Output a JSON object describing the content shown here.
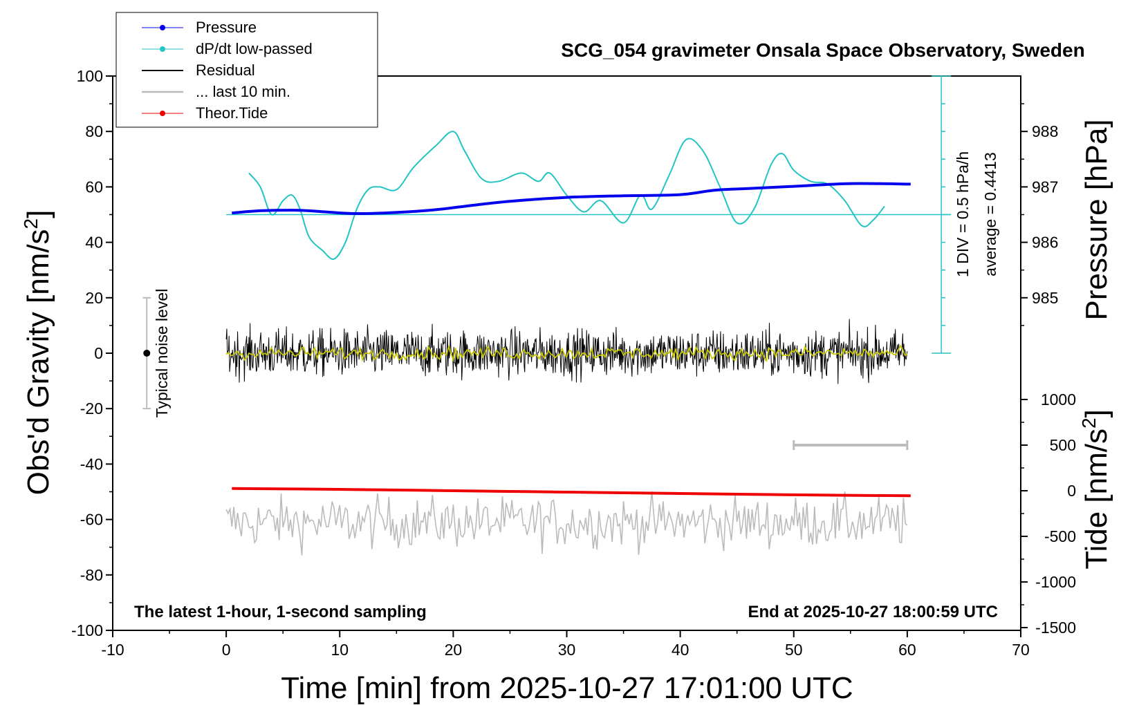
{
  "chart_data": {
    "type": "line",
    "title": "SCG_054 gravimeter Onsala Space Observatory, Sweden",
    "xlabel": "Time [min] from 2025-10-27 17:01:00 UTC",
    "ylabel": "Obs'd Gravity [nm/s",
    "ylabel_sup": "2",
    "ylabel_tail": "]",
    "y2label": "Pressure [hPa]",
    "y3label": "Tide [nm/s",
    "y3label_sup": "2",
    "y3label_tail": "]",
    "xlim": [
      -10,
      70
    ],
    "ylim": [
      -100,
      100
    ],
    "xticks": [
      "-10",
      "0",
      "10",
      "20",
      "30",
      "40",
      "50",
      "60",
      "70"
    ],
    "yticks": [
      "-100",
      "-80",
      "-60",
      "-40",
      "-20",
      "0",
      "20",
      "40",
      "60",
      "80",
      "100"
    ],
    "pressure_ticks": [
      "985",
      "986",
      "987",
      "988"
    ],
    "tide_ticks": [
      "-1500",
      "-1000",
      "-500",
      "0",
      "500",
      "1000"
    ],
    "grid": false,
    "legend_position": "top-left",
    "bottom_left_note": "The latest 1-hour, 1-second sampling",
    "bottom_right_note": "End at 2025-10-27 18:00:59 UTC",
    "noise_label": "Typical noise level",
    "noise_level": {
      "x": -7,
      "center": 0,
      "range": [
        -20,
        20
      ]
    },
    "dpdt_scale_label": "1 DIV = 0.5 hPa/h",
    "dpdt_average_label": "average = 0.4413",
    "dpdt_baseline_gravity": 50,
    "last10_bar": {
      "x": [
        50,
        60
      ],
      "tide": 500
    },
    "colors": {
      "pressure": "#0000ee",
      "dpdt": "#22c4c4",
      "residual": "#000000",
      "smoothed_residual": "#c8c800",
      "last10": "#bbbbbb",
      "tide": "#ee0000"
    },
    "series": [
      {
        "name": "Pressure",
        "axis": "pressure_hPa",
        "x": [
          0.5,
          3,
          6,
          8,
          11,
          14,
          18,
          21,
          25,
          30,
          35,
          40,
          43,
          46,
          50,
          55,
          60.3
        ],
        "y": [
          986.53,
          986.57,
          986.58,
          986.56,
          986.52,
          986.53,
          986.58,
          986.65,
          986.74,
          986.81,
          986.84,
          986.86,
          986.94,
          986.97,
          987.01,
          987.06,
          987.05
        ]
      },
      {
        "name": "dP/dt low-passed",
        "axis": "gravity_nm_s2",
        "x": [
          2,
          3,
          4,
          5,
          5.8,
          6.5,
          7.3,
          8.5,
          9.5,
          10.5,
          11.5,
          12.5,
          13.5,
          15,
          16.5,
          18.5,
          20,
          21,
          22.5,
          24,
          26,
          27.5,
          28.5,
          30,
          31.5,
          33,
          35,
          36.5,
          37.5,
          39,
          40.5,
          42,
          43.5,
          45,
          46.5,
          48,
          49,
          50,
          51.5,
          53,
          54.5,
          56,
          57,
          58
        ],
        "y": [
          65,
          60,
          50,
          55,
          57,
          52,
          42,
          37,
          34,
          40,
          52,
          59,
          60,
          59,
          67,
          75,
          80,
          73,
          63,
          62,
          65,
          62,
          65,
          57,
          51,
          55,
          47,
          57,
          52,
          64,
          77,
          73,
          60,
          47,
          52,
          68,
          72,
          66,
          62,
          61,
          55,
          46,
          48,
          53
        ]
      },
      {
        "name": "Residual",
        "axis": "gravity_nm_s2",
        "x_range": [
          0,
          60
        ],
        "center": 0,
        "amplitude_range": [
          -14,
          14
        ]
      },
      {
        "name": "... last 10 min.",
        "axis": "gravity_nm_s2",
        "x_range": [
          0,
          60
        ],
        "center": -61,
        "amplitude_range": [
          -74,
          -49
        ]
      },
      {
        "name": "Theor.Tide",
        "axis": "tide_nm_s2",
        "x": [
          0.5,
          10,
          20,
          30,
          40,
          50,
          60.3
        ],
        "y": [
          25,
          15,
          0,
          -15,
          -30,
          -45,
          -55
        ]
      }
    ]
  }
}
